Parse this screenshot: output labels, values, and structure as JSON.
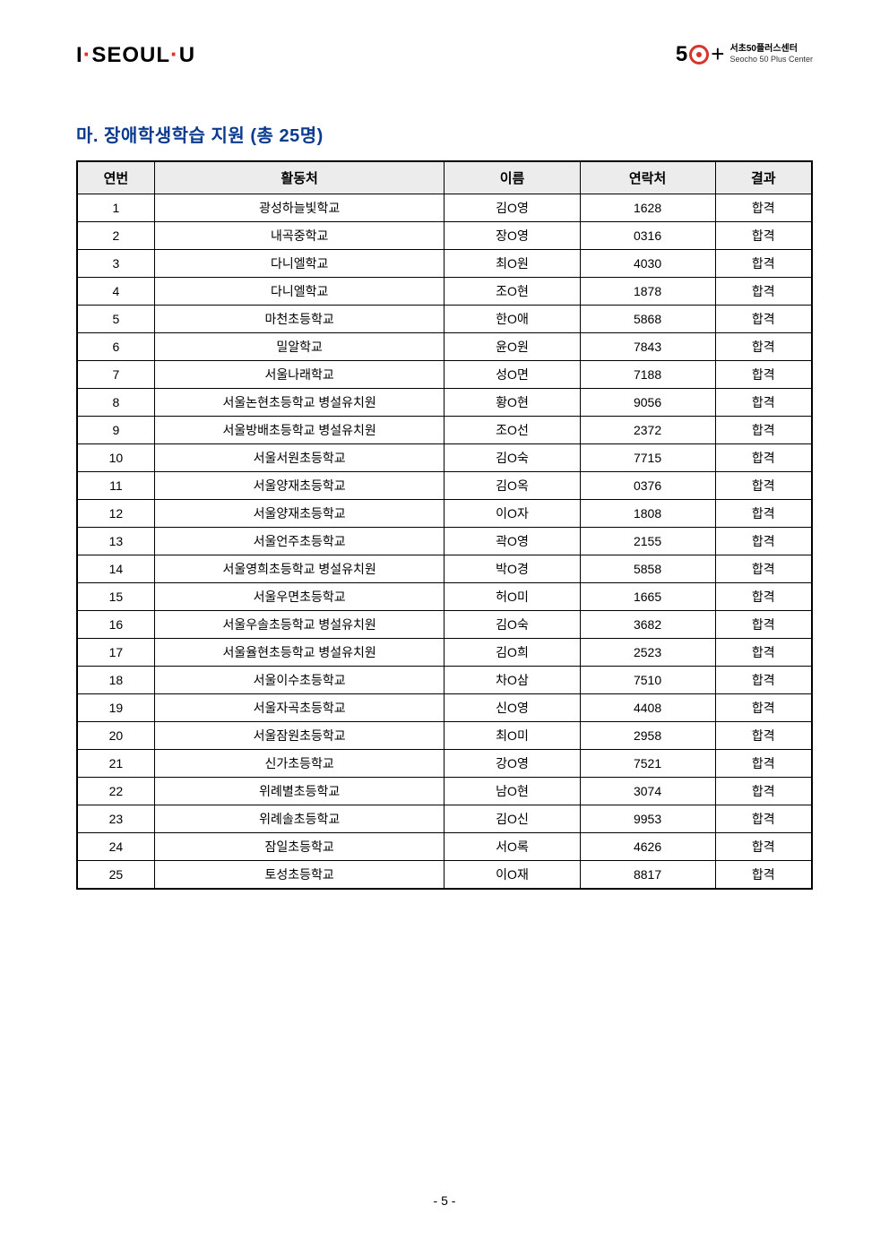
{
  "header": {
    "logo_left_part1": "I",
    "logo_left_part2": "SEOUL",
    "logo_left_part3": "U",
    "logo_right_5": "5",
    "logo_right_plus": "+",
    "logo_right_kr": "서초50플러스센터",
    "logo_right_en": "Seocho 50 Plus Center"
  },
  "section_title": "마. 장애학생학습 지원 (총 25명)",
  "columns": {
    "num": "연번",
    "place": "활동처",
    "name": "이름",
    "contact": "연락처",
    "result": "결과"
  },
  "rows": [
    {
      "num": "1",
      "place": "광성하늘빛학교",
      "name": "김O영",
      "contact": "1628",
      "result": "합격"
    },
    {
      "num": "2",
      "place": "내곡중학교",
      "name": "장O영",
      "contact": "0316",
      "result": "합격"
    },
    {
      "num": "3",
      "place": "다니엘학교",
      "name": "최O원",
      "contact": "4030",
      "result": "합격"
    },
    {
      "num": "4",
      "place": "다니엘학교",
      "name": "조O현",
      "contact": "1878",
      "result": "합격"
    },
    {
      "num": "5",
      "place": "마천초등학교",
      "name": "한O애",
      "contact": "5868",
      "result": "합격"
    },
    {
      "num": "6",
      "place": "밀알학교",
      "name": "윤O원",
      "contact": "7843",
      "result": "합격"
    },
    {
      "num": "7",
      "place": "서울나래학교",
      "name": "성O면",
      "contact": "7188",
      "result": "합격"
    },
    {
      "num": "8",
      "place": "서울논현초등학교 병설유치원",
      "name": "황O현",
      "contact": "9056",
      "result": "합격"
    },
    {
      "num": "9",
      "place": "서울방배초등학교 병설유치원",
      "name": "조O선",
      "contact": "2372",
      "result": "합격"
    },
    {
      "num": "10",
      "place": "서울서원초등학교",
      "name": "김O숙",
      "contact": "7715",
      "result": "합격"
    },
    {
      "num": "11",
      "place": "서울양재초등학교",
      "name": "김O옥",
      "contact": "0376",
      "result": "합격"
    },
    {
      "num": "12",
      "place": "서울양재초등학교",
      "name": "이O자",
      "contact": "1808",
      "result": "합격"
    },
    {
      "num": "13",
      "place": "서울언주초등학교",
      "name": "곽O영",
      "contact": "2155",
      "result": "합격"
    },
    {
      "num": "14",
      "place": "서울영희초등학교 병설유치원",
      "name": "박O경",
      "contact": "5858",
      "result": "합격"
    },
    {
      "num": "15",
      "place": "서울우면초등학교",
      "name": "허O미",
      "contact": "1665",
      "result": "합격"
    },
    {
      "num": "16",
      "place": "서울우솔초등학교 병설유치원",
      "name": "김O숙",
      "contact": "3682",
      "result": "합격"
    },
    {
      "num": "17",
      "place": "서울율현초등학교 병설유치원",
      "name": "김O희",
      "contact": "2523",
      "result": "합격"
    },
    {
      "num": "18",
      "place": "서울이수초등학교",
      "name": "차O삼",
      "contact": "7510",
      "result": "합격"
    },
    {
      "num": "19",
      "place": "서울자곡초등학교",
      "name": "신O영",
      "contact": "4408",
      "result": "합격"
    },
    {
      "num": "20",
      "place": "서울잠원초등학교",
      "name": "최O미",
      "contact": "2958",
      "result": "합격"
    },
    {
      "num": "21",
      "place": "신가초등학교",
      "name": "강O영",
      "contact": "7521",
      "result": "합격"
    },
    {
      "num": "22",
      "place": "위례별초등학교",
      "name": "남O현",
      "contact": "3074",
      "result": "합격"
    },
    {
      "num": "23",
      "place": "위례솔초등학교",
      "name": "김O신",
      "contact": "9953",
      "result": "합격"
    },
    {
      "num": "24",
      "place": "잠일초등학교",
      "name": "서O록",
      "contact": "4626",
      "result": "합격"
    },
    {
      "num": "25",
      "place": "토성초등학교",
      "name": "이O재",
      "contact": "8817",
      "result": "합격"
    }
  ],
  "page_number": "- 5 -"
}
